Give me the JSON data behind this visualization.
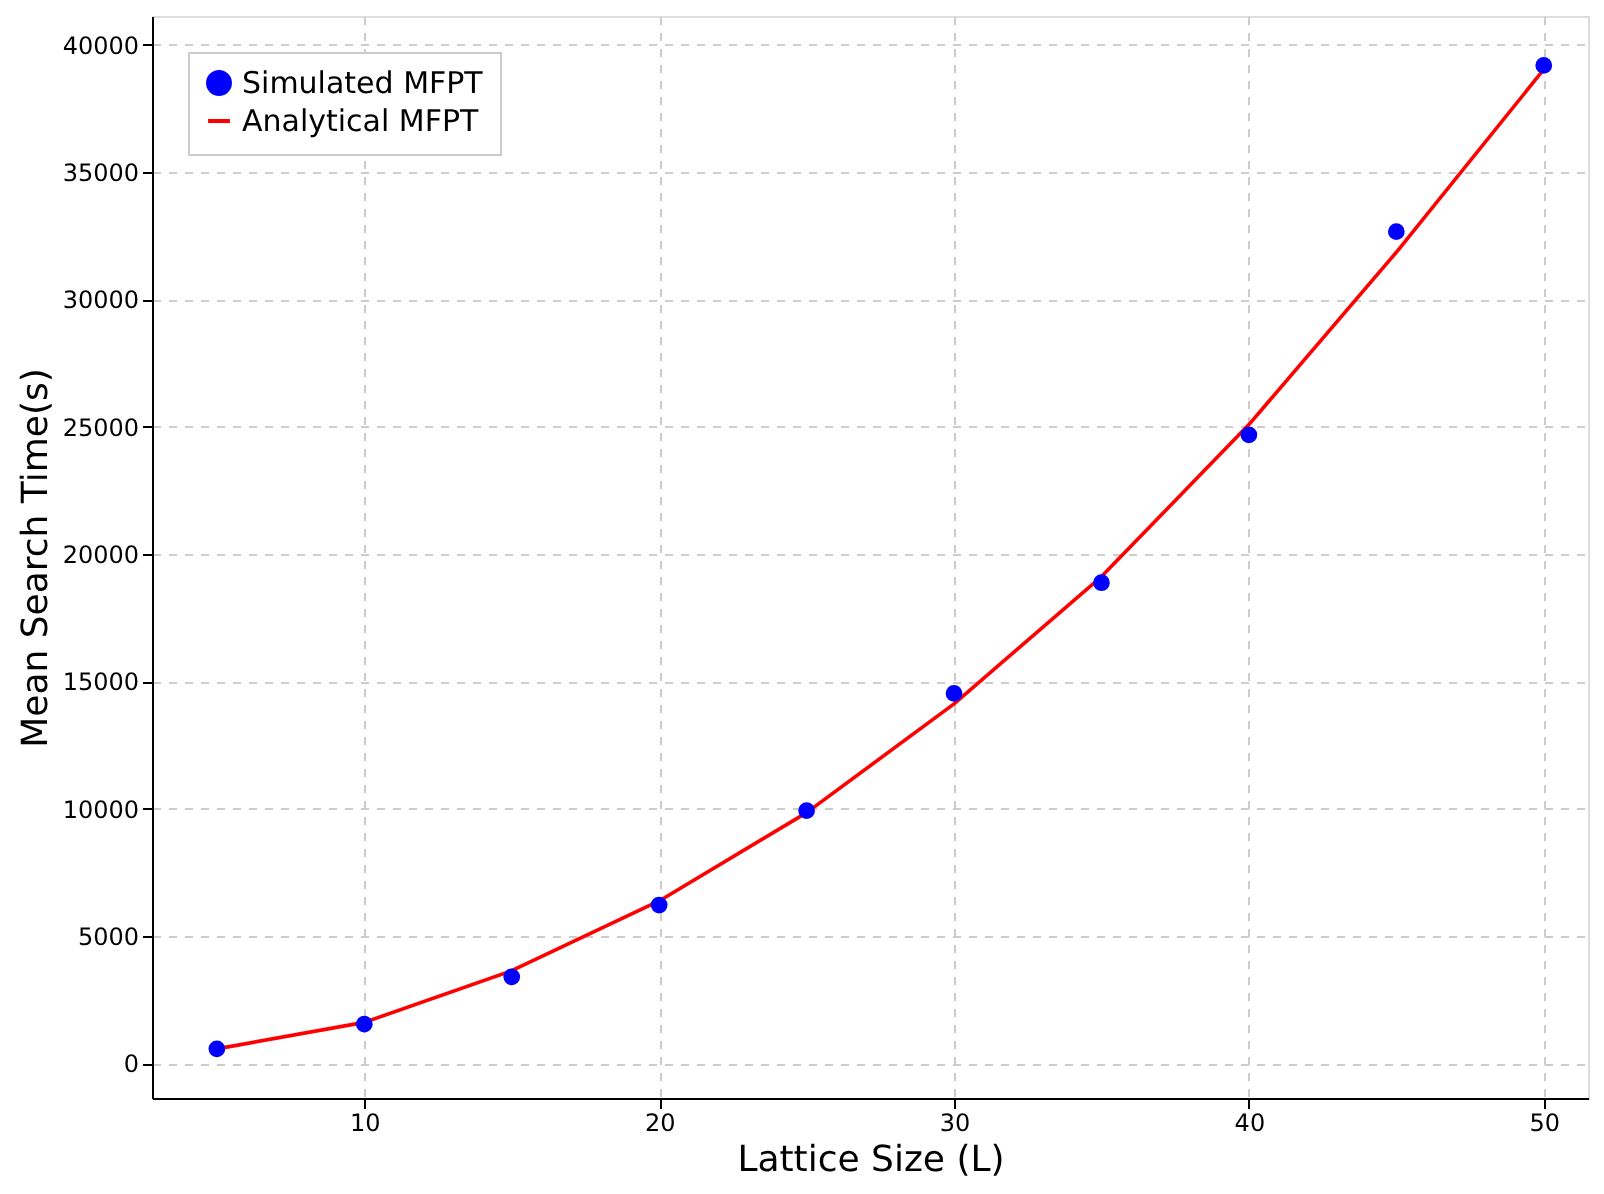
{
  "chart_data": {
    "type": "scatter",
    "xlabel": "Lattice Size (L)",
    "ylabel": "Mean Search Time(s)",
    "x": [
      5,
      10,
      15,
      20,
      25,
      30,
      35,
      40,
      45,
      50
    ],
    "series": [
      {
        "name": "Simulated MFPT",
        "color": "#0000ff",
        "marker": "circle",
        "values": [
          560,
          1530,
          3390,
          6210,
          9920,
          14520,
          18870,
          24680,
          32660,
          39190
        ]
      },
      {
        "name": "Analytical MFPT",
        "type": "line",
        "color": "#ff0000",
        "line_style": "solid",
        "values": [
          560,
          1600,
          3630,
          6370,
          9840,
          14110,
          19110,
          25080,
          31850,
          39030
        ]
      }
    ],
    "xlim": [
      2.8,
      51.5
    ],
    "ylim": [
      -1370,
      41130
    ],
    "xticks": [
      10,
      20,
      30,
      40,
      50
    ],
    "yticks": [
      0,
      5000,
      10000,
      15000,
      20000,
      25000,
      30000,
      35000,
      40000
    ],
    "grid": true,
    "legend": "top left"
  }
}
